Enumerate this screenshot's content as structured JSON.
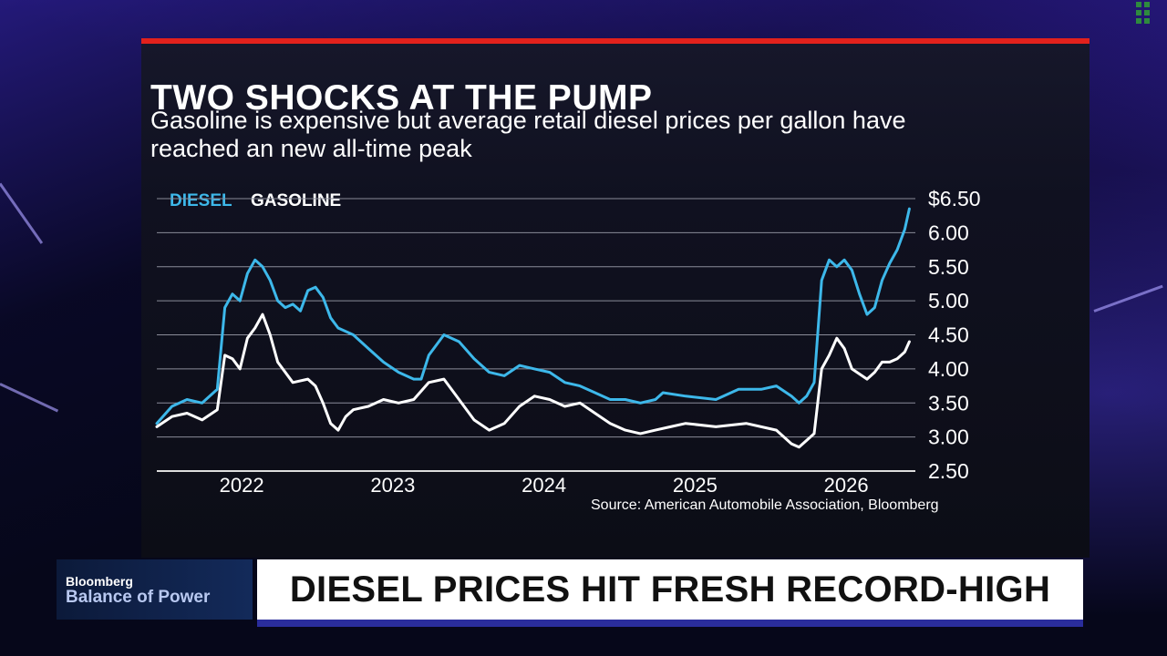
{
  "graphic": {
    "title": "TWO SHOCKS AT THE PUMP",
    "subtitle": "Gasoline is expensive but average retail diesel prices per gallon have reached an new all-time peak",
    "source": "Source: American Automobile Association, Bloomberg"
  },
  "lower_third": {
    "brand": "Bloomberg",
    "show": "Balance of Power",
    "headline": "DIESEL PRICES HIT FRESH RECORD-HIGH"
  },
  "colors": {
    "diesel": "#3db8ea",
    "gasoline": "#ffffff",
    "accent_red": "#e2211c",
    "lower_third_bar": "#2a2d9c"
  },
  "chart_data": {
    "type": "line",
    "title": "TWO SHOCKS AT THE PUMP",
    "xlabel": "",
    "ylabel": "",
    "ylim": [
      2.5,
      6.5
    ],
    "yticks": [
      "$6.50",
      "6.00",
      "5.50",
      "5.00",
      "4.50",
      "4.00",
      "3.50",
      "3.00",
      "2.50"
    ],
    "x_ticks": [
      "2022",
      "2023",
      "2024",
      "2025",
      "2026"
    ],
    "grid": true,
    "legend": "top-left",
    "series": [
      {
        "name": "DIESEL",
        "color": "#3db8ea",
        "points": [
          [
            2021.8,
            3.2
          ],
          [
            2021.9,
            3.45
          ],
          [
            2022.0,
            3.55
          ],
          [
            2022.1,
            3.5
          ],
          [
            2022.2,
            3.7
          ],
          [
            2022.25,
            4.9
          ],
          [
            2022.3,
            5.1
          ],
          [
            2022.35,
            5.0
          ],
          [
            2022.4,
            5.4
          ],
          [
            2022.45,
            5.6
          ],
          [
            2022.5,
            5.5
          ],
          [
            2022.55,
            5.3
          ],
          [
            2022.6,
            5.0
          ],
          [
            2022.65,
            4.9
          ],
          [
            2022.7,
            4.95
          ],
          [
            2022.75,
            4.85
          ],
          [
            2022.8,
            5.15
          ],
          [
            2022.85,
            5.2
          ],
          [
            2022.9,
            5.05
          ],
          [
            2022.95,
            4.75
          ],
          [
            2023.0,
            4.6
          ],
          [
            2023.1,
            4.5
          ],
          [
            2023.2,
            4.3
          ],
          [
            2023.3,
            4.1
          ],
          [
            2023.4,
            3.95
          ],
          [
            2023.5,
            3.85
          ],
          [
            2023.55,
            3.85
          ],
          [
            2023.6,
            4.2
          ],
          [
            2023.7,
            4.5
          ],
          [
            2023.8,
            4.4
          ],
          [
            2023.9,
            4.15
          ],
          [
            2024.0,
            3.95
          ],
          [
            2024.1,
            3.9
          ],
          [
            2024.2,
            4.05
          ],
          [
            2024.3,
            4.0
          ],
          [
            2024.4,
            3.95
          ],
          [
            2024.5,
            3.8
          ],
          [
            2024.6,
            3.75
          ],
          [
            2024.7,
            3.65
          ],
          [
            2024.8,
            3.55
          ],
          [
            2024.9,
            3.55
          ],
          [
            2025.0,
            3.5
          ],
          [
            2025.1,
            3.55
          ],
          [
            2025.15,
            3.65
          ],
          [
            2025.3,
            3.6
          ],
          [
            2025.5,
            3.55
          ],
          [
            2025.65,
            3.7
          ],
          [
            2025.8,
            3.7
          ],
          [
            2025.9,
            3.75
          ],
          [
            2026.0,
            3.6
          ],
          [
            2026.05,
            3.5
          ],
          [
            2026.1,
            3.6
          ],
          [
            2026.15,
            3.8
          ],
          [
            2026.2,
            5.3
          ],
          [
            2026.25,
            5.6
          ],
          [
            2026.3,
            5.5
          ],
          [
            2026.35,
            5.6
          ],
          [
            2026.4,
            5.45
          ],
          [
            2026.45,
            5.1
          ],
          [
            2026.5,
            4.8
          ],
          [
            2026.55,
            4.9
          ],
          [
            2026.6,
            5.3
          ],
          [
            2026.65,
            5.55
          ],
          [
            2026.7,
            5.75
          ],
          [
            2026.75,
            6.05
          ],
          [
            2026.78,
            6.35
          ]
        ]
      },
      {
        "name": "GASOLINE",
        "color": "#ffffff",
        "points": [
          [
            2021.8,
            3.15
          ],
          [
            2021.9,
            3.3
          ],
          [
            2022.0,
            3.35
          ],
          [
            2022.1,
            3.25
          ],
          [
            2022.2,
            3.4
          ],
          [
            2022.25,
            4.2
          ],
          [
            2022.3,
            4.15
          ],
          [
            2022.35,
            4.0
          ],
          [
            2022.4,
            4.45
          ],
          [
            2022.45,
            4.6
          ],
          [
            2022.5,
            4.8
          ],
          [
            2022.55,
            4.5
          ],
          [
            2022.6,
            4.1
          ],
          [
            2022.7,
            3.8
          ],
          [
            2022.8,
            3.85
          ],
          [
            2022.85,
            3.75
          ],
          [
            2022.9,
            3.5
          ],
          [
            2022.95,
            3.2
          ],
          [
            2023.0,
            3.1
          ],
          [
            2023.05,
            3.3
          ],
          [
            2023.1,
            3.4
          ],
          [
            2023.2,
            3.45
          ],
          [
            2023.3,
            3.55
          ],
          [
            2023.4,
            3.5
          ],
          [
            2023.5,
            3.55
          ],
          [
            2023.6,
            3.8
          ],
          [
            2023.7,
            3.85
          ],
          [
            2023.8,
            3.55
          ],
          [
            2023.9,
            3.25
          ],
          [
            2024.0,
            3.1
          ],
          [
            2024.1,
            3.2
          ],
          [
            2024.2,
            3.45
          ],
          [
            2024.3,
            3.6
          ],
          [
            2024.4,
            3.55
          ],
          [
            2024.5,
            3.45
          ],
          [
            2024.6,
            3.5
          ],
          [
            2024.7,
            3.35
          ],
          [
            2024.8,
            3.2
          ],
          [
            2024.9,
            3.1
          ],
          [
            2025.0,
            3.05
          ],
          [
            2025.1,
            3.1
          ],
          [
            2025.2,
            3.15
          ],
          [
            2025.3,
            3.2
          ],
          [
            2025.5,
            3.15
          ],
          [
            2025.7,
            3.2
          ],
          [
            2025.9,
            3.1
          ],
          [
            2026.0,
            2.9
          ],
          [
            2026.05,
            2.85
          ],
          [
            2026.1,
            2.95
          ],
          [
            2026.15,
            3.05
          ],
          [
            2026.2,
            4.0
          ],
          [
            2026.25,
            4.2
          ],
          [
            2026.3,
            4.45
          ],
          [
            2026.35,
            4.3
          ],
          [
            2026.4,
            4.0
          ],
          [
            2026.5,
            3.85
          ],
          [
            2026.55,
            3.95
          ],
          [
            2026.6,
            4.1
          ],
          [
            2026.65,
            4.1
          ],
          [
            2026.7,
            4.15
          ],
          [
            2026.75,
            4.25
          ],
          [
            2026.78,
            4.4
          ]
        ]
      }
    ]
  }
}
